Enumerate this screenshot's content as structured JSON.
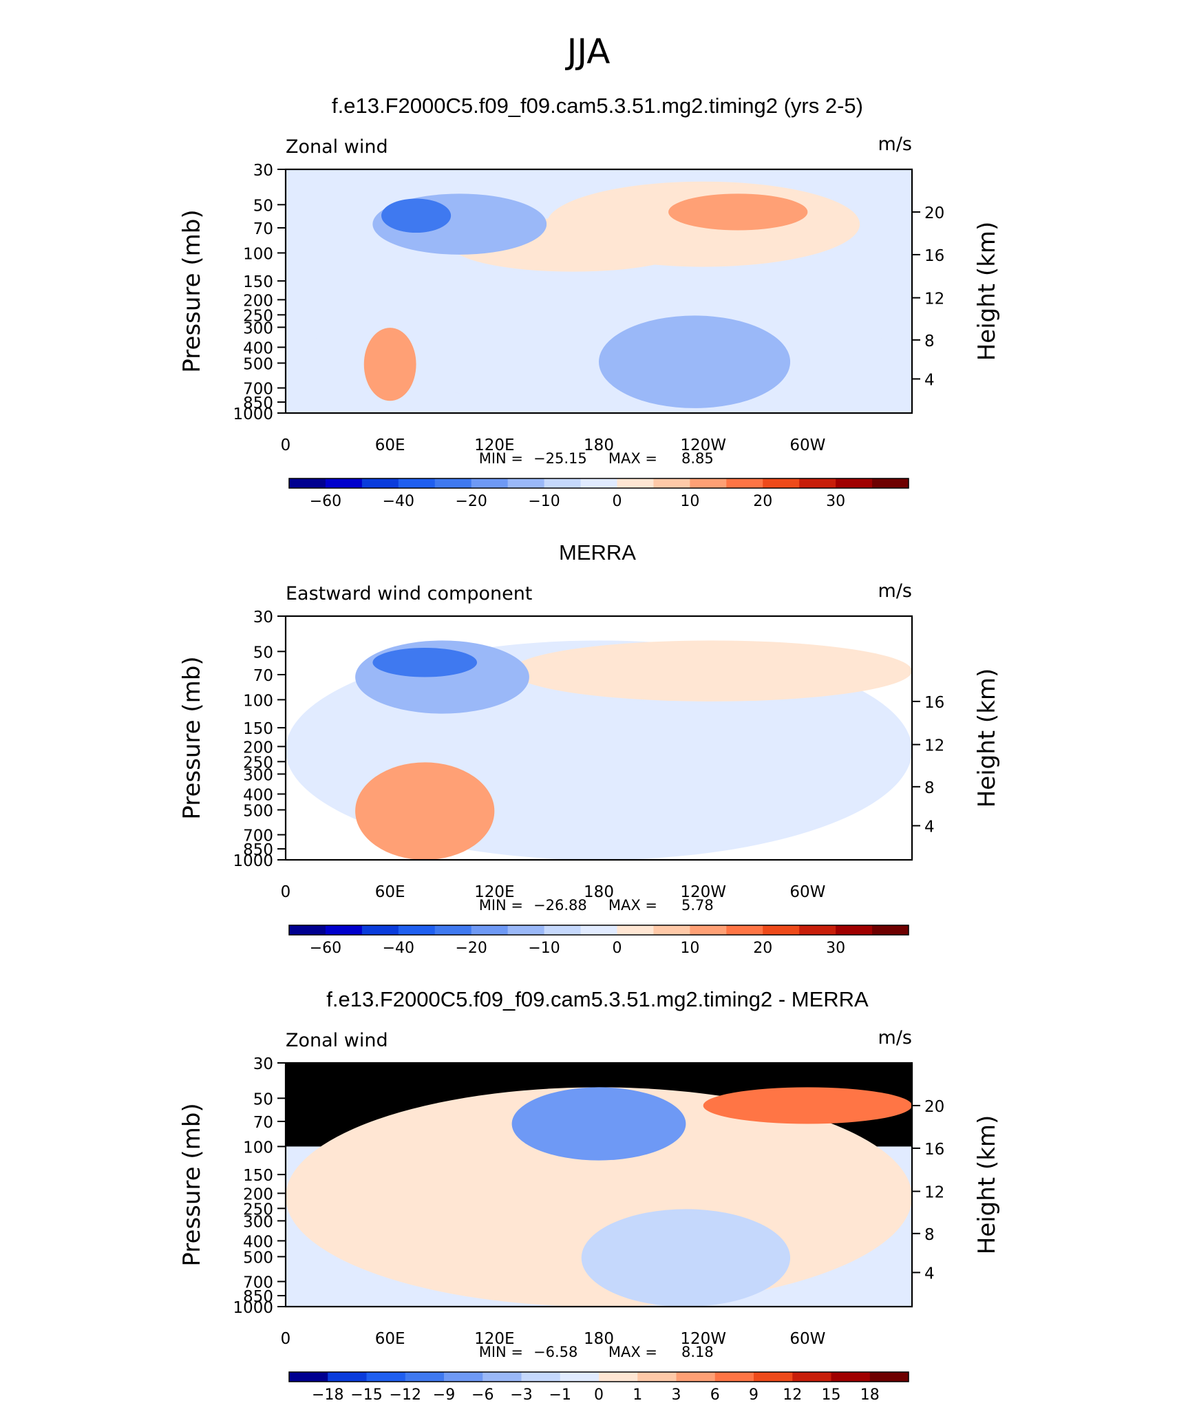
{
  "page": {
    "title": "JJA"
  },
  "chart_data": [
    {
      "type": "heatmap",
      "title": "f.e13.F2000C5.f09_f09.cam5.3.51.mg2.timing2 (yrs 2-5)",
      "subtitle_left": "Zonal wind",
      "units": "m/s",
      "ylabel": "Pressure (mb)",
      "ylabel_right": "Height (km)",
      "x_ticks": [
        "0",
        "60E",
        "120E",
        "180",
        "120W",
        "60W"
      ],
      "y_ticks": [
        "30",
        "50",
        "70",
        "100",
        "150",
        "200",
        "250",
        "300",
        "400",
        "500",
        "700",
        "850",
        "1000"
      ],
      "y_ticks_right": [
        "20",
        "16",
        "12",
        "8",
        "4"
      ],
      "stats": {
        "min_label": "MIN =",
        "min": "−25.15",
        "max_label": "MAX =",
        "max": "8.85"
      },
      "colorbar_ticks": [
        "−60",
        "−40",
        "−20",
        "−10",
        "0",
        "10",
        "20",
        "30"
      ],
      "fields": [
        {
          "level": -5,
          "x": 0,
          "y": 0,
          "w": 360,
          "h": 970
        },
        {
          "level": 1,
          "x": 95,
          "y": 200,
          "w": 140,
          "h": 220
        },
        {
          "level": -10,
          "x": 50,
          "y": 100,
          "w": 100,
          "h": 250
        },
        {
          "level": -20,
          "x": 55,
          "y": 120,
          "w": 40,
          "h": 140
        },
        {
          "level": 1,
          "x": 150,
          "y": 50,
          "w": 180,
          "h": 350
        },
        {
          "level": 5,
          "x": 220,
          "y": 100,
          "w": 80,
          "h": 150
        },
        {
          "level": -10,
          "x": 180,
          "y": 600,
          "w": 110,
          "h": 380
        },
        {
          "level": 5,
          "x": 45,
          "y": 650,
          "w": 30,
          "h": 300
        }
      ]
    },
    {
      "type": "heatmap",
      "title": "MERRA",
      "subtitle_left": "Eastward wind component",
      "units": "m/s",
      "ylabel": "Pressure (mb)",
      "ylabel_right": "Height (km)",
      "x_ticks": [
        "0",
        "60E",
        "120E",
        "180",
        "120W",
        "60W"
      ],
      "y_ticks": [
        "30",
        "50",
        "70",
        "100",
        "150",
        "200",
        "250",
        "300",
        "400",
        "500",
        "700",
        "850",
        "1000"
      ],
      "y_ticks_right": [
        "16",
        "12",
        "8",
        "4"
      ],
      "stats": {
        "min_label": "MIN =",
        "min": "−26.88",
        "max_label": "MAX =",
        "max": "5.78"
      },
      "colorbar_ticks": [
        "−60",
        "−40",
        "−20",
        "−10",
        "0",
        "10",
        "20",
        "30"
      ],
      "fields": [
        {
          "level": -5,
          "x": 0,
          "y": 100,
          "w": 360,
          "h": 900
        },
        {
          "level": 1,
          "x": 130,
          "y": 100,
          "w": 230,
          "h": 250
        },
        {
          "level": -10,
          "x": 40,
          "y": 100,
          "w": 100,
          "h": 300
        },
        {
          "level": -20,
          "x": 50,
          "y": 130,
          "w": 60,
          "h": 120
        },
        {
          "level": 5,
          "x": 40,
          "y": 600,
          "w": 80,
          "h": 400
        }
      ]
    },
    {
      "type": "heatmap",
      "title": "f.e13.F2000C5.f09_f09.cam5.3.51.mg2.timing2 - MERRA",
      "subtitle_left": "Zonal wind",
      "units": "m/s",
      "ylabel": "Pressure (mb)",
      "ylabel_right": "Height (km)",
      "x_ticks": [
        "0",
        "60E",
        "120E",
        "180",
        "120W",
        "60W"
      ],
      "y_ticks": [
        "30",
        "50",
        "70",
        "100",
        "150",
        "200",
        "250",
        "300",
        "400",
        "500",
        "700",
        "850",
        "1000"
      ],
      "y_ticks_right": [
        "20",
        "16",
        "12",
        "8",
        "4"
      ],
      "stats": {
        "min_label": "MIN =",
        "min": "−6.58",
        "max_label": "MAX =",
        "max": "8.18"
      },
      "colorbar_ticks": [
        "−18",
        "−15",
        "−12",
        "−9",
        "−6",
        "−3",
        "−1",
        "0",
        "1",
        "3",
        "6",
        "9",
        "12",
        "15",
        "18"
      ],
      "fields": [
        {
          "level": 0.5,
          "x": 0,
          "y": 100,
          "w": 360,
          "h": 900
        },
        {
          "level": -3,
          "x": 130,
          "y": 100,
          "w": 100,
          "h": 300
        },
        {
          "level": 6,
          "x": 240,
          "y": 100,
          "w": 120,
          "h": 150
        },
        {
          "level": -1,
          "x": 170,
          "y": 600,
          "w": 120,
          "h": 400
        }
      ]
    }
  ],
  "colorbar": {
    "colors_abs": [
      "#000090",
      "#0000cc",
      "#0a3cdc",
      "#1f5ff0",
      "#3f79f0",
      "#6e99f5",
      "#9ab8f8",
      "#c5d8fc",
      "#e1ebff",
      "#ffe6d3",
      "#ffc9a8",
      "#ffa075",
      "#ff7545",
      "#ee4a1a",
      "#c81e0a",
      "#a00000",
      "#6e0000"
    ],
    "colors_diff": [
      "#000090",
      "#0a3cdc",
      "#1f5ff0",
      "#3f79f0",
      "#6e99f5",
      "#9ab8f8",
      "#c5d8fc",
      "#e1ebff",
      "#ffe6d3",
      "#ffc9a8",
      "#ffa075",
      "#ff7545",
      "#ee4a1a",
      "#c81e0a",
      "#a00000",
      "#6e0000"
    ]
  }
}
